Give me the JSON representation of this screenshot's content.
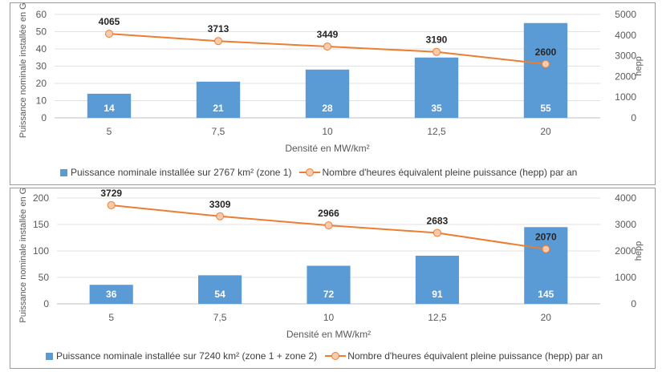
{
  "chart_data": [
    {
      "type": "bar",
      "xlabel": "Densité en MW/km²",
      "ylabel": "Puissance nominale installée en GW",
      "y2label": "hepp",
      "categories": [
        "5",
        "7,5",
        "10",
        "12,5",
        "20"
      ],
      "ylim": [
        0,
        60
      ],
      "yticks": [
        0,
        10,
        20,
        30,
        40,
        50,
        60
      ],
      "y2lim": [
        0,
        5000
      ],
      "y2ticks": [
        0,
        1000,
        2000,
        3000,
        4000,
        5000
      ],
      "series": [
        {
          "name": "Puissance nominale installée sur 2767 km² (zone 1)",
          "type": "bar",
          "axis": "left",
          "color": "#5b9bd5",
          "values": [
            14,
            21,
            28,
            35,
            55
          ]
        },
        {
          "name": "Nombre d'heures équivalent pleine puissance (hepp) par an",
          "type": "line",
          "axis": "right",
          "color": "#ed7d31",
          "values": [
            4065,
            3713,
            3449,
            3190,
            2600
          ]
        }
      ]
    },
    {
      "type": "bar",
      "xlabel": "Densité en MW/km²",
      "ylabel": "Puissance nominale installée en GW",
      "y2label": "hepp",
      "categories": [
        "5",
        "7,5",
        "10",
        "12,5",
        "20"
      ],
      "ylim": [
        0,
        200
      ],
      "yticks": [
        0,
        50,
        100,
        150,
        200
      ],
      "y2lim": [
        0,
        4000
      ],
      "y2ticks": [
        0,
        1000,
        2000,
        3000,
        4000
      ],
      "series": [
        {
          "name": "Puissance nominale installée sur 7240 km² (zone 1 + zone 2)",
          "type": "bar",
          "axis": "left",
          "color": "#5b9bd5",
          "values": [
            36,
            54,
            72,
            91,
            145
          ]
        },
        {
          "name": "Nombre d'heures équivalent pleine puissance (hepp) par an",
          "type": "line",
          "axis": "right",
          "color": "#ed7d31",
          "values": [
            3729,
            3309,
            2966,
            2683,
            2070
          ]
        }
      ]
    }
  ]
}
